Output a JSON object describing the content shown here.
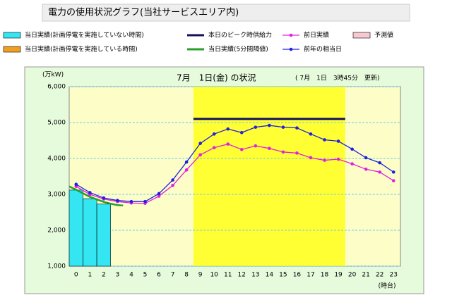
{
  "header": {
    "title": "電力の使用状況グラフ(当社サービスエリア内)"
  },
  "chart_data": {
    "type": "line",
    "title": "7月　1日(金) の状況",
    "subtitle": "( 7月　1日　3時45分　更新)",
    "y_label": "(万kW)",
    "x_label": "(時台)",
    "categories": [
      "0",
      "1",
      "2",
      "3",
      "4",
      "5",
      "6",
      "7",
      "8",
      "9",
      "10",
      "11",
      "12",
      "13",
      "14",
      "15",
      "16",
      "17",
      "18",
      "19",
      "20",
      "21",
      "22",
      "23"
    ],
    "xlim": [
      -0.5,
      23.5
    ],
    "ylim": [
      1000,
      6000
    ],
    "yticks": [
      {
        "value": 1000,
        "label": "1,000"
      },
      {
        "value": 2000,
        "label": "2,000"
      },
      {
        "value": 3000,
        "label": "3,000"
      },
      {
        "value": 4000,
        "label": "4,000"
      },
      {
        "value": 5000,
        "label": "5,000"
      },
      {
        "value": 6000,
        "label": "6,000"
      }
    ],
    "grid": true,
    "highlight_x": [
      8.5,
      19.5
    ],
    "series": [
      {
        "name": "当日実績(計画停電を実施していない時間)",
        "kind": "bar",
        "color": "#33e6f2",
        "values": [
          3120,
          2880,
          2730,
          null,
          null,
          null,
          null,
          null,
          null,
          null,
          null,
          null,
          null,
          null,
          null,
          null,
          null,
          null,
          null,
          null,
          null,
          null,
          null,
          null
        ]
      },
      {
        "name": "当日実績(計画停電を実施している時間)",
        "kind": "bar",
        "color": "#f0a020",
        "values": [
          null,
          null,
          null,
          null,
          null,
          null,
          null,
          null,
          null,
          null,
          null,
          null,
          null,
          null,
          null,
          null,
          null,
          null,
          null,
          null,
          null,
          null,
          null,
          null
        ]
      },
      {
        "name": "本日のピーク時供給力",
        "kind": "hline",
        "color": "#101060",
        "x": [
          8.5,
          19.5
        ],
        "values": [
          5100,
          5100
        ]
      },
      {
        "name": "当日実績(5分間隔値)",
        "kind": "plain",
        "color": "#28a028",
        "x": [
          -0.5,
          0,
          0.5,
          1,
          1.5,
          2,
          2.5,
          3,
          3.4
        ],
        "values": [
          3220,
          3130,
          3030,
          2930,
          2860,
          2790,
          2740,
          2700,
          2690
        ]
      },
      {
        "name": "前日実績",
        "kind": "marker",
        "color": "#e020e0",
        "values": [
          3220,
          3000,
          2870,
          2800,
          2760,
          2750,
          2950,
          3250,
          3680,
          4100,
          4300,
          4400,
          4250,
          4350,
          4280,
          4180,
          4150,
          4020,
          3950,
          3980,
          3850,
          3700,
          3620,
          3380
        ]
      },
      {
        "name": "前年の相当日",
        "kind": "marker",
        "color": "#2020e0",
        "values": [
          3280,
          3050,
          2900,
          2830,
          2800,
          2800,
          3020,
          3400,
          3900,
          4420,
          4680,
          4820,
          4720,
          4870,
          4920,
          4870,
          4850,
          4680,
          4520,
          4480,
          4260,
          4020,
          3880,
          3620
        ]
      },
      {
        "name": "予測値",
        "kind": "bar",
        "color": "#f8c8d0",
        "values": [
          null,
          null,
          null,
          null,
          null,
          null,
          null,
          null,
          null,
          null,
          null,
          null,
          null,
          null,
          null,
          null,
          null,
          null,
          null,
          null,
          null,
          null,
          null,
          null
        ]
      }
    ]
  }
}
